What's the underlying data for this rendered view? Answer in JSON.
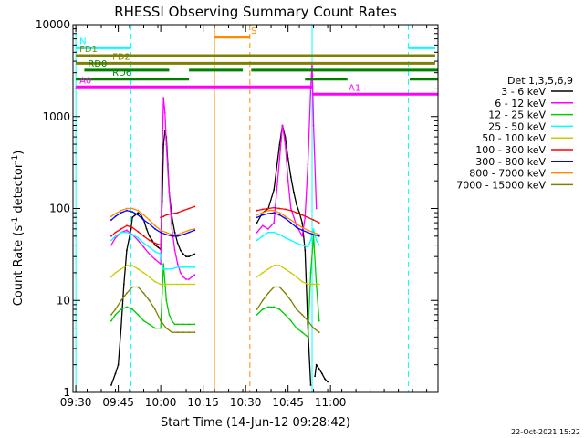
{
  "chart_data": {
    "type": "line",
    "title": "RHESSI Observing Summary Count Rates",
    "xlabel": "Start Time (14-Jun-12 09:28:42)",
    "ylabel": "Count Rate (s⁻¹ detector⁻¹)",
    "ylabel_main": "Count Rate (s",
    "ylabel_sup1": "-1",
    "ylabel_mid": " detector",
    "ylabel_sup2": "-1",
    "ylabel_end": ")",
    "ylog": true,
    "ylim": [
      1,
      10000
    ],
    "xlim_minutes": [
      -1,
      128
    ],
    "x_tick_labels": [
      "09:30",
      "09:45",
      "10:00",
      "10:15",
      "10:30",
      "10:45",
      "11:00"
    ],
    "x_tick_minutes": [
      0,
      15,
      30,
      45,
      60,
      75,
      90
    ],
    "y_tick_labels": [
      "1",
      "10",
      "100",
      "1000",
      "10000"
    ],
    "y_tick_values": [
      1,
      10,
      100,
      1000,
      10000
    ],
    "legend_title": "Det 1,3,5,6,9",
    "legend_position": "right",
    "footer_date": "22-Oct-2021 15:22",
    "series": [
      {
        "name": "3 - 6 keV",
        "color": "#000000",
        "segments": [
          {
            "x": [
              12.5,
              14,
              15,
              16,
              17,
              18,
              19.5,
              20,
              21,
              22,
              23,
              24,
              25,
              26,
              27,
              28,
              29,
              30
            ],
            "y": [
              1.2,
              1.6,
              2,
              5,
              15,
              35,
              60,
              80,
              85,
              90,
              85,
              75,
              60,
              50,
              45,
              40,
              38,
              36
            ]
          },
          {
            "x": [
              30,
              30.5,
              31,
              31.5,
              32,
              32.5,
              33,
              34,
              35,
              36,
              37,
              38,
              39,
              40,
              41,
              42
            ],
            "y": [
              36,
              120,
              500,
              700,
              600,
              300,
              150,
              80,
              55,
              42,
              35,
              32,
              30,
              30,
              31,
              32
            ]
          },
          {
            "x": [
              64,
              66,
              68,
              70,
              72,
              73,
              74,
              75,
              76,
              77,
              78,
              79,
              80,
              81,
              82,
              83
            ],
            "y": [
              70,
              90,
              100,
              160,
              500,
              800,
              600,
              350,
              220,
              150,
              110,
              90,
              70,
              35,
              5,
              1.2
            ]
          },
          {
            "x": [
              84.5,
              85,
              86,
              87,
              88,
              89
            ],
            "y": [
              1.5,
              2,
              1.8,
              1.6,
              1.4,
              1.3
            ]
          }
        ]
      },
      {
        "name": "6 - 12 keV",
        "color": "#ff00ff",
        "segments": [
          {
            "x": [
              12.5,
              14,
              16,
              18,
              20,
              22,
              24,
              26,
              28,
              30
            ],
            "y": [
              40,
              48,
              55,
              58,
              52,
              45,
              38,
              32,
              28,
              25
            ]
          },
          {
            "x": [
              30,
              30.5,
              31,
              31.5,
              32,
              33,
              34,
              35,
              36,
              37,
              38,
              39,
              40,
              41,
              42
            ],
            "y": [
              25,
              400,
              1600,
              1100,
              500,
              150,
              60,
              35,
              25,
              20,
              18,
              17,
              17,
              18,
              19
            ]
          },
          {
            "x": [
              64,
              66,
              68,
              70,
              72,
              73,
              74,
              75,
              76,
              78,
              80,
              81,
              82,
              83,
              83.5,
              84,
              85
            ],
            "y": [
              55,
              65,
              60,
              70,
              350,
              800,
              500,
              200,
              100,
              65,
              50,
              80,
              300,
              2000,
              3800,
              800,
              100
            ]
          }
        ]
      },
      {
        "name": "12 - 25 keV",
        "color": "#00cc00",
        "segments": [
          {
            "x": [
              12.5,
              14,
              16,
              18,
              20,
              22,
              24,
              26,
              28,
              30
            ],
            "y": [
              6,
              7,
              8,
              8.5,
              8,
              7,
              6,
              5.5,
              5,
              5
            ]
          },
          {
            "x": [
              30,
              30.5,
              31,
              32,
              33,
              34,
              35,
              36,
              38,
              40,
              42
            ],
            "y": [
              5,
              12,
              25,
              10,
              7,
              6,
              5.5,
              5.5,
              5.5,
              5.5,
              5.5
            ]
          },
          {
            "x": [
              64,
              66,
              68,
              70,
              72,
              74,
              76,
              78,
              80,
              82,
              83,
              84,
              85,
              86
            ],
            "y": [
              7,
              8,
              8.5,
              8.5,
              8,
              7,
              6,
              5,
              4.5,
              4,
              20,
              50,
              15,
              6
            ]
          }
        ]
      },
      {
        "name": "25 - 50 keV",
        "color": "#00ffff",
        "segments": [
          {
            "x": [
              12.5,
              14,
              16,
              18,
              20,
              22,
              24,
              26,
              28,
              30
            ],
            "y": [
              45,
              50,
              55,
              55,
              52,
              48,
              42,
              38,
              34,
              32
            ]
          },
          {
            "x": [
              30,
              30.5,
              31,
              32,
              34,
              36,
              38,
              40,
              42
            ],
            "y": [
              32,
              24,
              22,
              22,
              22,
              23,
              23,
              23,
              23
            ]
          },
          {
            "x": [
              64,
              66,
              68,
              70,
              72,
              74,
              76,
              78,
              80,
              82,
              83,
              84,
              85,
              86
            ],
            "y": [
              45,
              50,
              55,
              55,
              52,
              48,
              45,
              42,
              40,
              38,
              45,
              60,
              45,
              40
            ]
          }
        ]
      },
      {
        "name": "50 - 100 keV",
        "color": "#cccc00",
        "segments": [
          {
            "x": [
              12.5,
              14,
              16,
              18,
              20,
              22,
              24,
              26,
              28,
              30,
              32,
              34,
              36,
              38,
              40,
              42
            ],
            "y": [
              18,
              20,
              22,
              24,
              24,
              22,
              20,
              18,
              16,
              15,
              15,
              15,
              15,
              15,
              15,
              15
            ]
          },
          {
            "x": [
              64,
              66,
              68,
              70,
              72,
              74,
              76,
              78,
              80,
              82,
              84,
              86
            ],
            "y": [
              18,
              20,
              22,
              24,
              24,
              22,
              20,
              18,
              16,
              15,
              15,
              15
            ]
          }
        ]
      },
      {
        "name": "100 - 300 keV",
        "color": "#ff0000",
        "segments": [
          {
            "x": [
              12.5,
              14,
              16,
              18,
              20,
              22,
              24,
              26,
              28,
              30
            ],
            "y": [
              50,
              55,
              60,
              65,
              62,
              56,
              50,
              45,
              42,
              40
            ]
          },
          {
            "x": [
              30,
              31,
              32,
              34,
              36,
              38,
              40,
              42
            ],
            "y": [
              80,
              82,
              85,
              88,
              90,
              95,
              100,
              105
            ]
          },
          {
            "x": [
              64,
              66,
              68,
              70,
              72,
              74,
              76,
              78,
              80,
              82,
              84,
              86
            ],
            "y": [
              95,
              98,
              100,
              102,
              100,
              98,
              95,
              90,
              85,
              80,
              75,
              70
            ]
          }
        ]
      },
      {
        "name": "300 - 800 keV",
        "color": "#0000ff",
        "segments": [
          {
            "x": [
              12.5,
              14,
              16,
              18,
              20,
              22,
              24,
              26,
              28,
              30,
              32,
              34,
              36,
              38,
              40,
              42
            ],
            "y": [
              75,
              82,
              90,
              95,
              92,
              85,
              75,
              68,
              60,
              55,
              52,
              50,
              50,
              52,
              55,
              58
            ]
          },
          {
            "x": [
              64,
              66,
              68,
              70,
              72,
              74,
              76,
              78,
              80,
              82,
              84,
              86
            ],
            "y": [
              80,
              85,
              88,
              90,
              85,
              78,
              70,
              62,
              58,
              55,
              52,
              50
            ]
          }
        ]
      },
      {
        "name": "800 - 7000 keV",
        "color": "#ff8c00",
        "segments": [
          {
            "x": [
              12.5,
              14,
              16,
              18,
              20,
              22,
              24,
              26,
              28,
              30,
              32,
              34,
              36,
              38,
              40,
              42
            ],
            "y": [
              82,
              88,
              95,
              100,
              100,
              95,
              85,
              75,
              65,
              58,
              55,
              52,
              52,
              55,
              58,
              60
            ]
          },
          {
            "x": [
              64,
              66,
              68,
              70,
              72,
              74,
              76,
              78,
              80,
              82,
              84,
              86
            ],
            "y": [
              85,
              90,
              95,
              95,
              90,
              82,
              75,
              68,
              62,
              58,
              55,
              52
            ]
          }
        ]
      },
      {
        "name": "7000 - 15000 keV",
        "color": "#808000",
        "segments": [
          {
            "x": [
              12.5,
              14,
              16,
              18,
              20,
              22,
              24,
              26,
              28,
              30,
              32,
              34,
              36,
              38,
              40,
              42
            ],
            "y": [
              7,
              8,
              10,
              12,
              14,
              14,
              12,
              10,
              8,
              6,
              5,
              4.5,
              4.5,
              4.5,
              4.5,
              4.5
            ]
          },
          {
            "x": [
              64,
              66,
              68,
              70,
              72,
              74,
              76,
              78,
              80,
              82,
              84,
              86
            ],
            "y": [
              8,
              10,
              12,
              14,
              14,
              12,
              10,
              8,
              7,
              6,
              5,
              4.5
            ]
          }
        ]
      }
    ],
    "vertical_lines": [
      {
        "x": 0,
        "color": "#00ffff",
        "style": "solid"
      },
      {
        "x": 19.5,
        "color": "#00ffff",
        "style": "dashed"
      },
      {
        "x": 49,
        "color": "#ff8c00",
        "style": "solid"
      },
      {
        "x": 61.5,
        "color": "#ff8c00",
        "style": "dashed"
      },
      {
        "x": 83.5,
        "color": "#00ffff",
        "style": "solid"
      },
      {
        "x": 117.5,
        "color": "#00ffff",
        "style": "dashed"
      }
    ],
    "flag_bars": [
      {
        "label": "N",
        "color": "#00ffff",
        "y": 5600,
        "segments": [
          [
            0,
            19.5
          ],
          [
            117.5,
            127
          ]
        ]
      },
      {
        "label": "S",
        "color": "#ff8c00",
        "y": 7300,
        "segments": [
          [
            49,
            61.5
          ]
        ]
      },
      {
        "label": "FD1",
        "color": "#808000",
        "y": 4600,
        "segments": [
          [
            0,
            127
          ]
        ]
      },
      {
        "label": "FD2",
        "color": "#808000",
        "y": 3800,
        "segments": [
          [
            0,
            127
          ]
        ]
      },
      {
        "label": "RD0",
        "color": "#008000",
        "y": 3200,
        "segments": [
          [
            3,
            33
          ],
          [
            40,
            59
          ],
          [
            62,
            128
          ]
        ]
      },
      {
        "label": "RD6",
        "color": "#008000",
        "y": 2550,
        "segments": [
          [
            0,
            40
          ],
          [
            81,
            96
          ],
          [
            118,
            128
          ]
        ]
      },
      {
        "label": "A0",
        "color": "#ff00ff",
        "y": 2100,
        "segments": [
          [
            0,
            83.5
          ]
        ]
      },
      {
        "label": "A1",
        "color": "#ff00ff",
        "y": 1750,
        "segments": [
          [
            83.5,
            128
          ]
        ]
      }
    ]
  }
}
